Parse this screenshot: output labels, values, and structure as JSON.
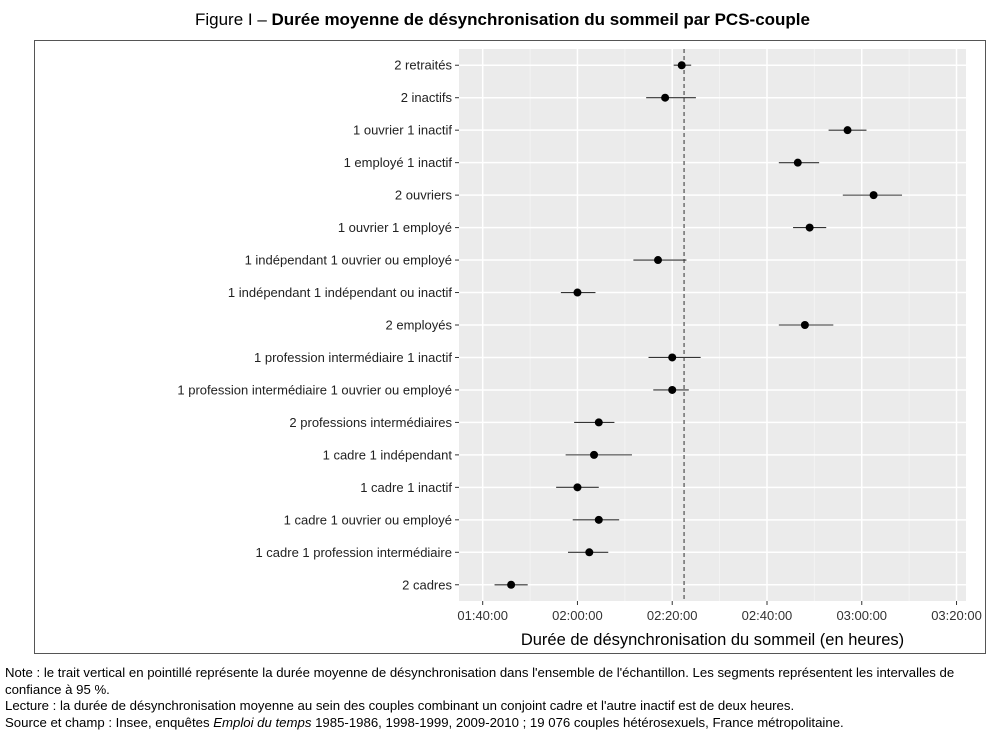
{
  "title": {
    "prefix": "Figure I – ",
    "main": "Durée moyenne de désynchronisation du sommeil par PCS-couple"
  },
  "notes": {
    "note": "Note : le trait vertical en pointillé représente la durée moyenne de désynchronisation dans l'ensemble de l'échantillon. Les segments représentent les intervalles de confiance à 95 %.",
    "lecture": "Lecture : la durée de désynchronisation moyenne au sein des couples combinant un conjoint cadre et l'autre inactif est de deux heures.",
    "source_prefix": "Source et champ : Insee, enquêtes ",
    "source_italic": "Emploi du temps",
    "source_suffix": " 1985-1986, 1998-1999, 2009-2010 ; 19 076 couples hétérosexuels, France métropolitaine."
  },
  "chart_data": {
    "type": "dot-errorbar",
    "xlabel": "Durée de désynchronisation du sommeil (en heures)",
    "x_unit": "minutes",
    "xlim": [
      95,
      202
    ],
    "x_ticks": [
      {
        "value": 100,
        "label": "01:40:00"
      },
      {
        "value": 120,
        "label": "02:00:00"
      },
      {
        "value": 140,
        "label": "02:20:00"
      },
      {
        "value": 160,
        "label": "02:40:00"
      },
      {
        "value": 180,
        "label": "03:00:00"
      },
      {
        "value": 200,
        "label": "03:20:00"
      }
    ],
    "reference_line": 142.5,
    "grid": true,
    "categories": [
      {
        "label": "2 retraités",
        "mean": 142,
        "low": 140.3,
        "high": 144
      },
      {
        "label": "2 inactifs",
        "mean": 138.5,
        "low": 134.5,
        "high": 145
      },
      {
        "label": "1 ouvrier 1 inactif",
        "mean": 177,
        "low": 173,
        "high": 181
      },
      {
        "label": "1 employé 1 inactif",
        "mean": 166.5,
        "low": 162.5,
        "high": 171
      },
      {
        "label": "2 ouvriers",
        "mean": 182.5,
        "low": 176,
        "high": 188.5
      },
      {
        "label": "1 ouvrier 1 employé",
        "mean": 169,
        "low": 165.5,
        "high": 172.5
      },
      {
        "label": "1 indépendant 1 ouvrier ou employé",
        "mean": 137,
        "low": 131.8,
        "high": 143
      },
      {
        "label": "1 indépendant 1 indépendant ou inactif",
        "mean": 120,
        "low": 116.5,
        "high": 123.8
      },
      {
        "label": "2 employés",
        "mean": 168,
        "low": 162.5,
        "high": 174
      },
      {
        "label": "1 profession intermédiaire 1 inactif",
        "mean": 140,
        "low": 135,
        "high": 146
      },
      {
        "label": "1 profession intermédiaire 1 ouvrier ou employé",
        "mean": 140,
        "low": 136,
        "high": 143.5
      },
      {
        "label": "2 professions intermédiaires",
        "mean": 124.5,
        "low": 119.3,
        "high": 127.8
      },
      {
        "label": "1 cadre 1 indépendant",
        "mean": 123.5,
        "low": 117.5,
        "high": 131.5
      },
      {
        "label": "1 cadre 1 inactif",
        "mean": 120,
        "low": 115.5,
        "high": 124.5
      },
      {
        "label": "1 cadre 1 ouvrier ou employé",
        "mean": 124.5,
        "low": 119,
        "high": 128.8
      },
      {
        "label": "1 cadre 1 profession intermédiaire",
        "mean": 122.5,
        "low": 118,
        "high": 126.5
      },
      {
        "label": "2 cadres",
        "mean": 106,
        "low": 102.5,
        "high": 109.5
      }
    ]
  }
}
